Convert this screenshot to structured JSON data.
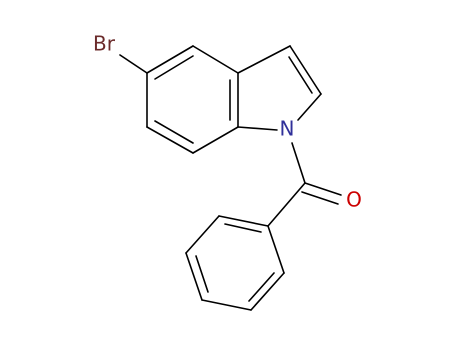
{
  "atoms": {
    "bromine": "Br",
    "nitrogen": "N",
    "oxygen": "O"
  }
}
